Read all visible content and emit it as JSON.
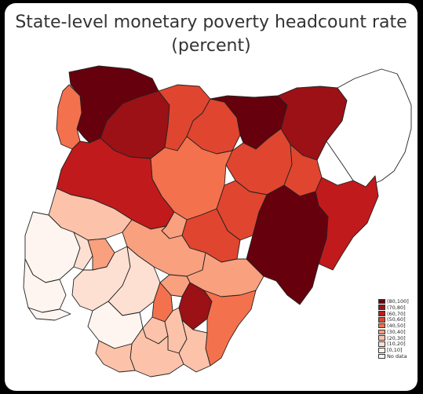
{
  "title_line1": "State-level monetary poverty headcount rate",
  "title_line2": "(percent)",
  "colors": {
    "c80_100": "#67000d",
    "c70_80": "#9b1116",
    "c60_70": "#c11a1c",
    "c50_60": "#e0452f",
    "c40_50": "#f4714e",
    "c30_40": "#f9a07f",
    "c20_30": "#fcc3aa",
    "c10_20": "#fde0d2",
    "c0_10": "#fff5f0",
    "no_data": "#ffffff"
  },
  "legend": [
    {
      "label": "(80,100]",
      "color": "#67000d"
    },
    {
      "label": "(70,80]",
      "color": "#9b1116"
    },
    {
      "label": "(60,70]",
      "color": "#c11a1c"
    },
    {
      "label": "(50,60]",
      "color": "#e0452f"
    },
    {
      "label": "(40,50]",
      "color": "#f4714e"
    },
    {
      "label": "(30,40]",
      "color": "#f9a07f"
    },
    {
      "label": "(20,30]",
      "color": "#fcc3aa"
    },
    {
      "label": "(10,20]",
      "color": "#fde0d2"
    },
    {
      "label": "[0,10]",
      "color": "#fff5f0"
    },
    {
      "label": "No data",
      "color": "#ffffff"
    }
  ]
}
